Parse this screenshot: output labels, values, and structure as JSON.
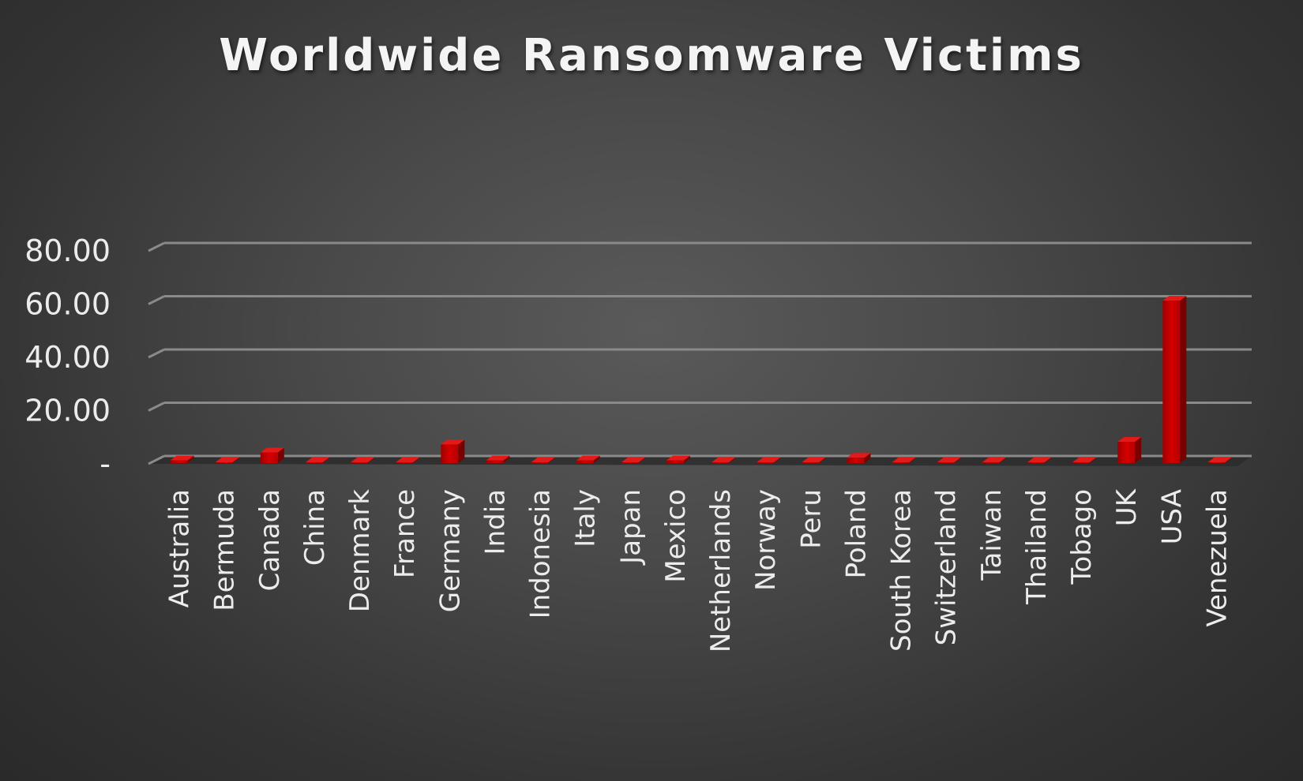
{
  "chart_data": {
    "type": "bar",
    "title": "Worldwide Ransomware Victims",
    "xlabel": "",
    "ylabel": "",
    "ylim": [
      0,
      80
    ],
    "yticks": [
      0,
      20,
      40,
      60,
      80
    ],
    "ytick_labels": [
      "-",
      "20.00",
      "40.00",
      "60.00",
      "80.00"
    ],
    "grid": true,
    "legend": "none",
    "bar_color": "#c00000",
    "categories": [
      "Australia",
      "Bermuda",
      "Canada",
      "China",
      "Denmark",
      "France",
      "Germany",
      "India",
      "Indonesia",
      "Italy",
      "Japan",
      "Mexico",
      "Netherlands",
      "Norway",
      "Peru",
      "Poland",
      "South Korea",
      "Switzerland",
      "Taiwan",
      "Thailand",
      "Tobago",
      "UK",
      "USA",
      "Venezuela"
    ],
    "values": [
      1.0,
      0.3,
      4.0,
      0.3,
      0.3,
      0.3,
      7.0,
      1.0,
      0.3,
      1.0,
      0.3,
      1.0,
      0.3,
      0.3,
      0.3,
      2.0,
      0.3,
      0.3,
      0.3,
      0.3,
      0.3,
      8.0,
      61.0,
      0.3
    ]
  }
}
